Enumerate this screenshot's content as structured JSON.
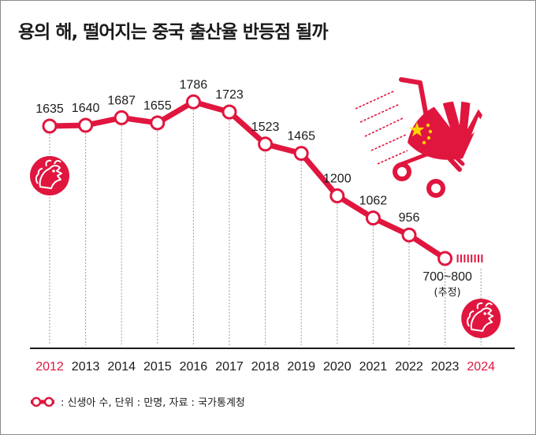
{
  "title": "용의 해, 떨어지는 중국 출산율 반등점 될까",
  "legend_text": ": 신생아 수, 단위 : 만명, 자료 : 국가통계청",
  "colors": {
    "accent": "#e0163f",
    "line": "#e0163f",
    "axis": "#1b1b1b",
    "grid": "#9a9a9a",
    "highlight_year": "#e0163f"
  },
  "icons": [
    "dragon-icon-2012",
    "dragon-icon-2024",
    "baby-stroller-icon",
    "china-flag-icon"
  ],
  "chart_data": {
    "type": "line",
    "title": "용의 해, 떨어지는 중국 출산율 반등점 될까",
    "categories": [
      "2012",
      "2013",
      "2014",
      "2015",
      "2016",
      "2017",
      "2018",
      "2019",
      "2020",
      "2021",
      "2022",
      "2023",
      "2024"
    ],
    "series": [
      {
        "name": "신생아 수",
        "values": [
          1635,
          1640,
          1687,
          1655,
          1786,
          1723,
          1523,
          1465,
          1200,
          1062,
          956,
          null,
          null
        ]
      }
    ],
    "value_labels": [
      "1635",
      "1640",
      "1687",
      "1655",
      "1786",
      "1723",
      "1523",
      "1465",
      "1200",
      "1062",
      "956",
      "",
      ""
    ],
    "highlighted_categories": [
      "2012",
      "2024"
    ],
    "estimate": {
      "category": "2023",
      "label": "700~800",
      "note": "(추정)",
      "value": 750
    },
    "unit": "만명",
    "source": "국가통계청",
    "grid": "vertical dashed",
    "legend": "bottom-left"
  }
}
